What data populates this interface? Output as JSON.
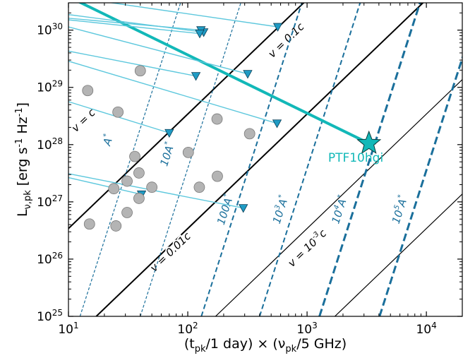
{
  "chart_data": {
    "type": "scatter",
    "xlabel": "(t$_{pk}$/1 day) × (ν$_{pk}$/5 GHz)",
    "ylabel": "L$_{ν,pk}$ [erg s$^{-1}$ Hz$^{-1}$]",
    "xscale": "log",
    "yscale": "log",
    "xlim": [
      10,
      20000
    ],
    "ylim": [
      1e+25,
      3e+30
    ],
    "x_ticks": [
      {
        "value": 10,
        "mant": "10",
        "exp": "1"
      },
      {
        "value": 100,
        "mant": "10",
        "exp": "2"
      },
      {
        "value": 1000,
        "mant": "10",
        "exp": "3"
      },
      {
        "value": 10000,
        "mant": "10",
        "exp": "4"
      }
    ],
    "y_ticks": [
      {
        "value": 1e+25,
        "mant": "10",
        "exp": "25"
      },
      {
        "value": 1e+26,
        "mant": "10",
        "exp": "26"
      },
      {
        "value": 1e+27,
        "mant": "10",
        "exp": "27"
      },
      {
        "value": 1e+28,
        "mant": "10",
        "exp": "28"
      },
      {
        "value": 1e+29,
        "mant": "10",
        "exp": "29"
      },
      {
        "value": 1e+30,
        "mant": "10",
        "exp": "30"
      }
    ],
    "velocity_lines": [
      {
        "label": "v = c",
        "parts": [
          [
            "v = c",
            ""
          ]
        ],
        "x_at_1e25": 1.71,
        "weight": "thick",
        "label_x": 14.0,
        "label_y": 2.4e+28
      },
      {
        "label": "v = 0.1c",
        "parts": [
          [
            "v = 0.1c",
            ""
          ]
        ],
        "x_at_1e25": 17.1,
        "weight": "thick",
        "label_x": 700,
        "label_y": 6e+29
      },
      {
        "label": "v = 0.01c",
        "parts": [
          [
            "v = 0.01c",
            ""
          ]
        ],
        "x_at_1e25": 171,
        "weight": "thin",
        "label_x": 75,
        "label_y": 1.2e+26
      },
      {
        "label": "v = 10^-3 c",
        "parts": [
          [
            "v = 10",
            ""
          ],
          [
            "-3",
            "sup"
          ],
          [
            "c",
            ""
          ]
        ],
        "x_at_1e25": 1710,
        "weight": "thin",
        "label_x": 1050,
        "label_y": 1.4e+26
      }
    ],
    "density_lines": [
      {
        "label": "A*",
        "parts": [
          [
            "A",
            ""
          ],
          [
            "*",
            "sup"
          ]
        ],
        "x_at_1e25": 12.5,
        "style": "thin-dash",
        "label_x": 23,
        "label_y": 1.15e+28
      },
      {
        "label": "10A*",
        "parts": [
          [
            "10A",
            ""
          ],
          [
            "*",
            "sup"
          ]
        ],
        "x_at_1e25": 40,
        "style": "thin-dash",
        "label_x": 72,
        "label_y": 6.5e+27
      },
      {
        "label": "100A*",
        "parts": [
          [
            "100A",
            ""
          ],
          [
            "*",
            "sup"
          ]
        ],
        "x_at_1e25": 130,
        "style": "med-dash",
        "label_x": 220,
        "label_y": 7e+26
      },
      {
        "label": "10^3A*",
        "parts": [
          [
            "10",
            ""
          ],
          [
            "3",
            "sup"
          ],
          [
            "A",
            ""
          ],
          [
            "*",
            "sup"
          ]
        ],
        "x_at_1e25": 400,
        "style": "med-dash",
        "label_x": 640,
        "label_y": 7e+26
      },
      {
        "label": "10^4A*",
        "parts": [
          [
            "10",
            ""
          ],
          [
            "4",
            "sup"
          ],
          [
            "A",
            ""
          ],
          [
            "*",
            "sup"
          ]
        ],
        "x_at_1e25": 1270,
        "style": "thick-dash",
        "label_x": 2000,
        "label_y": 7e+26
      },
      {
        "label": "10^5A*",
        "parts": [
          [
            "10",
            ""
          ],
          [
            "5",
            "sup"
          ],
          [
            "A",
            ""
          ],
          [
            "*",
            "sup"
          ]
        ],
        "x_at_1e25": 4050,
        "style": "thick-dash",
        "label_x": 6400,
        "label_y": 7e+26
      }
    ],
    "gray_points": [
      {
        "x": 14.5,
        "y": 8.8e+28
      },
      {
        "x": 40,
        "y": 1.95e+29
      },
      {
        "x": 26,
        "y": 3.7e+28
      },
      {
        "x": 36,
        "y": 6.2e+27
      },
      {
        "x": 39,
        "y": 3.2e+27
      },
      {
        "x": 31,
        "y": 2.3e+27
      },
      {
        "x": 24,
        "y": 1.7e+27
      },
      {
        "x": 39,
        "y": 1.15e+27
      },
      {
        "x": 50,
        "y": 1.8e+27
      },
      {
        "x": 31,
        "y": 6.5e+26
      },
      {
        "x": 15,
        "y": 4.1e+26
      },
      {
        "x": 25,
        "y": 3.8e+26
      },
      {
        "x": 101,
        "y": 7.3e+27
      },
      {
        "x": 176,
        "y": 2.8e+28
      },
      {
        "x": 177,
        "y": 2.8e+27
      },
      {
        "x": 125,
        "y": 1.8e+27
      },
      {
        "x": 330,
        "y": 1.55e+28
      }
    ],
    "upper_limits": [
      {
        "x0": 1.0,
        "y0": 3.5e+30,
        "x": 136,
        "y": 9.2e+29
      },
      {
        "x0": 3.2,
        "y0": 2e+30,
        "x": 129,
        "y": 1e+30
      },
      {
        "x0": 1.0,
        "y0": 2.5e+30,
        "x": 126,
        "y": 8.7e+29
      },
      {
        "x0": 1.0,
        "y0": 1.1e+30,
        "x": 117,
        "y": 1.58e+29
      },
      {
        "x0": 6.5,
        "y0": 4.4e+30,
        "x": 568,
        "y": 1.14e+30
      },
      {
        "x0": 1.0,
        "y0": 4e+30,
        "x": 318,
        "y": 1.72e+29
      },
      {
        "x0": 1.0,
        "y0": 1.2e+30,
        "x": 560,
        "y": 2.35e+28
      },
      {
        "x0": 1.0,
        "y0": 2.5e+29,
        "x": 70,
        "y": 1.6e+28
      },
      {
        "x0": 1.0,
        "y0": 8e+27,
        "x": 41,
        "y": 1.35e+27
      },
      {
        "x0": 1.0,
        "y0": 8e+27,
        "x": 292,
        "y": 7.8e+26
      }
    ],
    "highlight": {
      "label": "PTF10hgi",
      "x": 3300,
      "y": 1.05e+28,
      "track_start_x": 1.0,
      "track_start_y": 4e+31,
      "label_x": 1500,
      "label_y": 5e+27
    },
    "colors": {
      "highlight": "#12b8b8",
      "limit_line": "#5ec8dd",
      "limit_marker": "#1f9bc4",
      "density": "#1a6f9b",
      "velocity": "#000000",
      "gray_point": "#b4b4b4",
      "annotation": "#1a6f9b"
    }
  }
}
